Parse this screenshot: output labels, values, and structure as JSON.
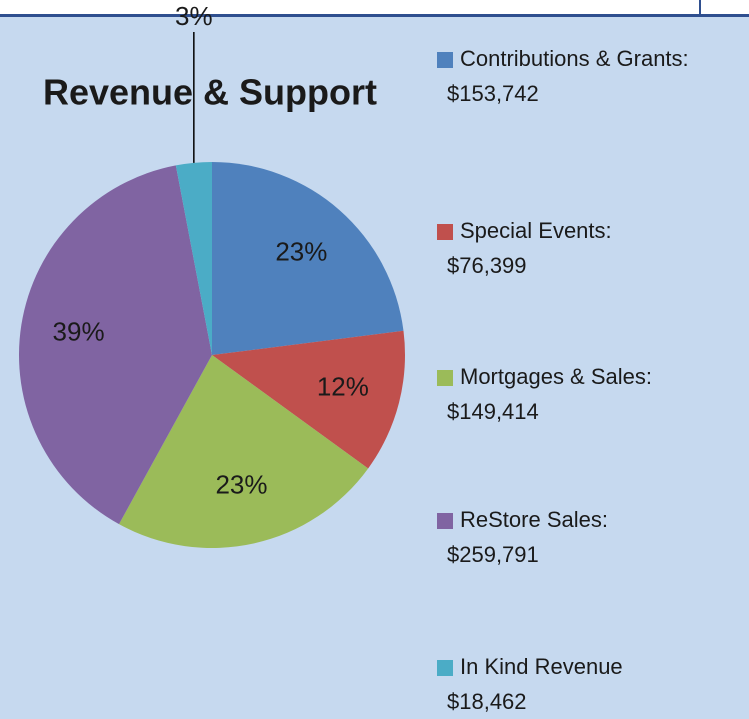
{
  "chart_data": {
    "type": "pie",
    "title": "Revenue & Support",
    "categories": [
      "Contributions & Grants:",
      "Special Events:",
      "Mortgages & Sales:",
      "ReStore Sales:",
      "In Kind Revenue"
    ],
    "amounts": [
      "$153,742",
      "$76,399",
      "$149,414",
      "$259,791",
      "$18,462"
    ],
    "values": [
      23,
      12,
      23,
      39,
      3
    ],
    "value_labels": [
      "23%",
      "12%",
      "23%",
      "39%",
      "3%"
    ],
    "colors": [
      "#4f81bd",
      "#c0504d",
      "#9bbb59",
      "#8064a2",
      "#4bacc6"
    ]
  }
}
